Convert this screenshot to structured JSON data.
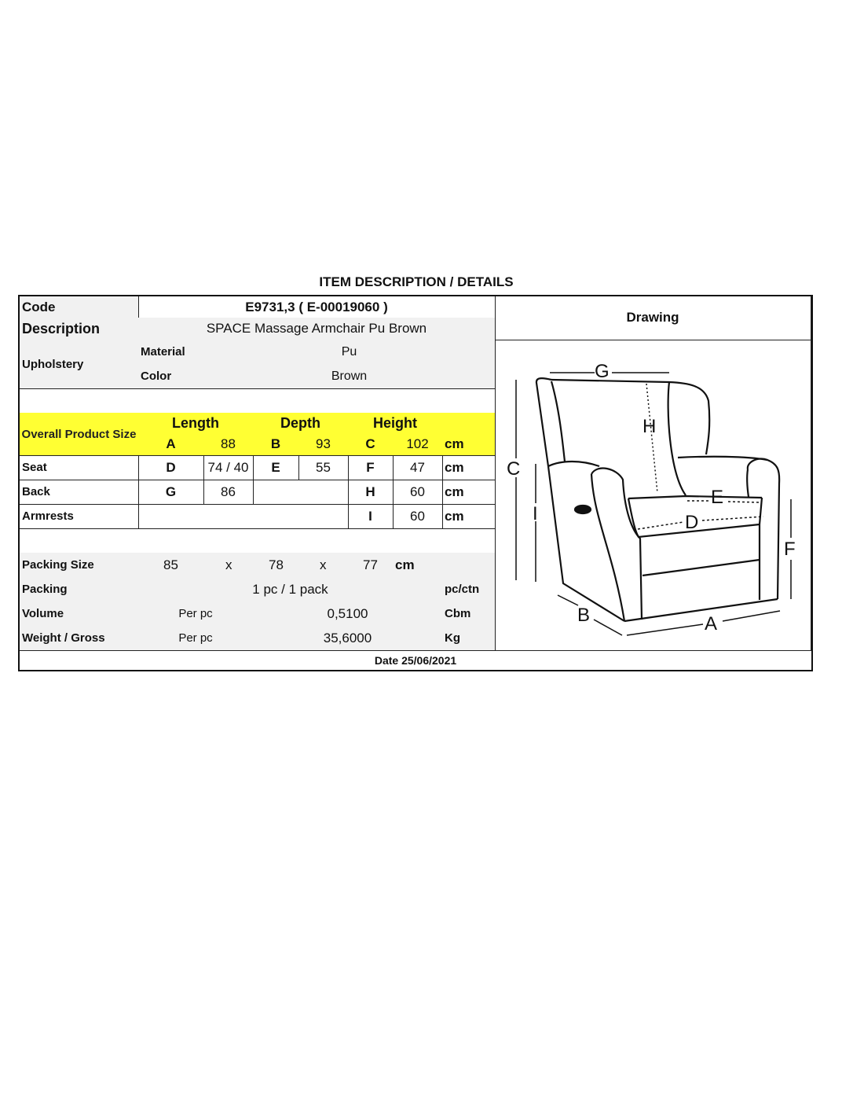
{
  "title": "ITEM DESCRIPTION / DETAILS",
  "code": {
    "label": "Code",
    "value": "E9731,3 ( E-00019060 )"
  },
  "description": {
    "label": "Description",
    "value": "SPACE Massage Armchair Pu Brown"
  },
  "drawing_label": "Drawing",
  "upholstery": {
    "label": "Upholstery",
    "material_label": "Material",
    "material": "Pu",
    "color_label": "Color",
    "color": "Brown"
  },
  "overall": {
    "label": "Overall Product Size",
    "length": "Length",
    "depth": "Depth",
    "height": "Height",
    "a": "A",
    "a_val": "88",
    "b": "B",
    "b_val": "93",
    "c": "C",
    "c_val": "102",
    "unit": "cm"
  },
  "seat": {
    "label": "Seat",
    "d": "D",
    "d_val": "74 / 40",
    "e": "E",
    "e_val": "55",
    "f": "F",
    "f_val": "47",
    "unit": "cm"
  },
  "back": {
    "label": "Back",
    "g": "G",
    "g_val": "86",
    "h": "H",
    "h_val": "60",
    "unit": "cm"
  },
  "armrests": {
    "label": "Armrests",
    "i": "I",
    "i_val": "60",
    "unit": "cm"
  },
  "packing_size": {
    "label": "Packing Size",
    "l": "85",
    "x1": "x",
    "w": "78",
    "x2": "x",
    "h": "77",
    "unit": "cm"
  },
  "packing": {
    "label": "Packing",
    "value": "1 pc / 1 pack",
    "unit": "pc/ctn"
  },
  "volume": {
    "label": "Volume",
    "per": "Per pc",
    "value": "0,5100",
    "unit": "Cbm"
  },
  "weight": {
    "label": "Weight / Gross",
    "per": "Per pc",
    "value": "35,6000",
    "unit": "Kg"
  },
  "date": "Date 25/06/2021",
  "drawing_letters": {
    "a": "A",
    "b": "B",
    "c": "C",
    "d": "D",
    "e": "E",
    "f": "F",
    "g": "G",
    "h": "H",
    "i": "I"
  },
  "colors": {
    "highlight": "#ffff33",
    "cell_gray": "#f1f1f1"
  }
}
